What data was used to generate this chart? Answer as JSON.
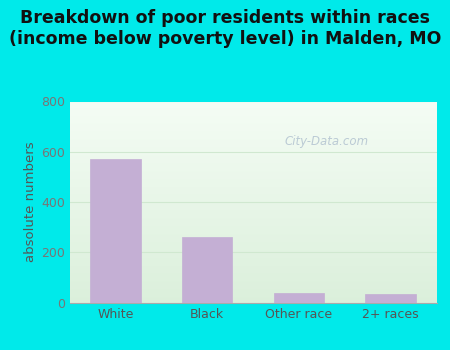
{
  "categories": [
    "White",
    "Black",
    "Other race",
    "2+ races"
  ],
  "values": [
    570,
    260,
    40,
    35
  ],
  "bar_color": "#c4afd4",
  "bar_edgecolor": "#c4afd4",
  "title": "Breakdown of poor residents within races\n(income below poverty level) in Malden, MO",
  "ylabel": "absolute numbers",
  "ylim": [
    0,
    800
  ],
  "yticks": [
    0,
    200,
    400,
    600,
    800
  ],
  "outer_bg": "#00eaea",
  "plot_bg_topleft": "#e8f5e0",
  "plot_bg_topright": "#f5faf5",
  "plot_bg_bottomleft": "#d8efd8",
  "grid_color": "#d0e8d0",
  "watermark": "City-Data.com",
  "title_fontsize": 12.5,
  "ylabel_fontsize": 9.5,
  "tick_fontsize": 9
}
